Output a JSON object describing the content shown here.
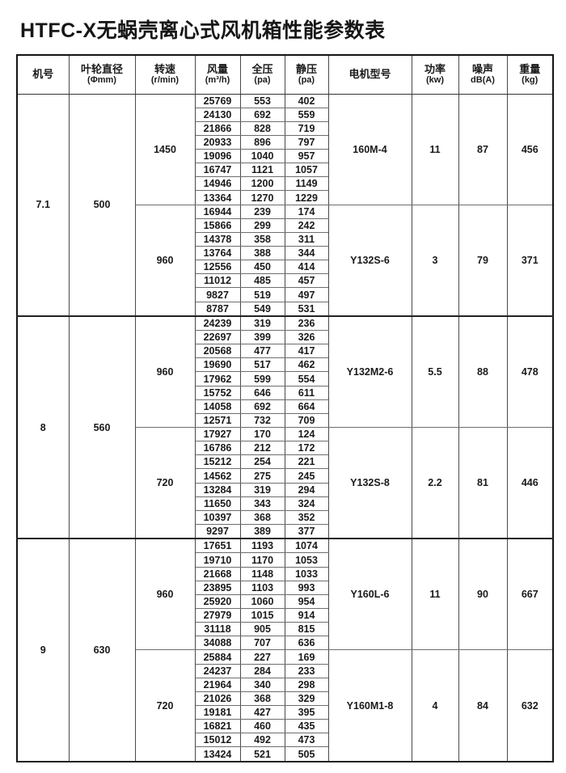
{
  "title": "HTFC-X无蜗壳离心式风机箱性能参数表",
  "table": {
    "headers": [
      {
        "label": "机号",
        "unit": ""
      },
      {
        "label": "叶轮直径",
        "unit": "(Φmm)"
      },
      {
        "label": "转速",
        "unit": "(r/min)"
      },
      {
        "label": "风量",
        "unit": "(m³/h)"
      },
      {
        "label": "全压",
        "unit": "(pa)"
      },
      {
        "label": "静压",
        "unit": "(pa)"
      },
      {
        "label": "电机型号",
        "unit": ""
      },
      {
        "label": "功率",
        "unit": "(kw)"
      },
      {
        "label": "噪声",
        "unit": "dB(A)"
      },
      {
        "label": "重量",
        "unit": "(kg)"
      }
    ],
    "groups": [
      {
        "machine_no": "7.1",
        "impeller_diameter": "500",
        "blocks": [
          {
            "speed": "1450",
            "motor_model": "160M-4",
            "power": "11",
            "noise": "87",
            "weight": "456",
            "rows": [
              [
                "25769",
                "553",
                "402"
              ],
              [
                "24130",
                "692",
                "559"
              ],
              [
                "21866",
                "828",
                "719"
              ],
              [
                "20933",
                "896",
                "797"
              ],
              [
                "19096",
                "1040",
                "957"
              ],
              [
                "16747",
                "1121",
                "1057"
              ],
              [
                "14946",
                "1200",
                "1149"
              ],
              [
                "13364",
                "1270",
                "1229"
              ]
            ]
          },
          {
            "speed": "960",
            "motor_model": "Y132S-6",
            "power": "3",
            "noise": "79",
            "weight": "371",
            "rows": [
              [
                "16944",
                "239",
                "174"
              ],
              [
                "15866",
                "299",
                "242"
              ],
              [
                "14378",
                "358",
                "311"
              ],
              [
                "13764",
                "388",
                "344"
              ],
              [
                "12556",
                "450",
                "414"
              ],
              [
                "11012",
                "485",
                "457"
              ],
              [
                "9827",
                "519",
                "497"
              ],
              [
                "8787",
                "549",
                "531"
              ]
            ]
          }
        ]
      },
      {
        "machine_no": "8",
        "impeller_diameter": "560",
        "blocks": [
          {
            "speed": "960",
            "motor_model": "Y132M2-6",
            "power": "5.5",
            "noise": "88",
            "weight": "478",
            "rows": [
              [
                "24239",
                "319",
                "236"
              ],
              [
                "22697",
                "399",
                "326"
              ],
              [
                "20568",
                "477",
                "417"
              ],
              [
                "19690",
                "517",
                "462"
              ],
              [
                "17962",
                "599",
                "554"
              ],
              [
                "15752",
                "646",
                "611"
              ],
              [
                "14058",
                "692",
                "664"
              ],
              [
                "12571",
                "732",
                "709"
              ]
            ]
          },
          {
            "speed": "720",
            "motor_model": "Y132S-8",
            "power": "2.2",
            "noise": "81",
            "weight": "446",
            "rows": [
              [
                "17927",
                "170",
                "124"
              ],
              [
                "16786",
                "212",
                "172"
              ],
              [
                "15212",
                "254",
                "221"
              ],
              [
                "14562",
                "275",
                "245"
              ],
              [
                "13284",
                "319",
                "294"
              ],
              [
                "11650",
                "343",
                "324"
              ],
              [
                "10397",
                "368",
                "352"
              ],
              [
                "9297",
                "389",
                "377"
              ]
            ]
          }
        ]
      },
      {
        "machine_no": "9",
        "impeller_diameter": "630",
        "blocks": [
          {
            "speed": "960",
            "motor_model": "Y160L-6",
            "power": "11",
            "noise": "90",
            "weight": "667",
            "rows": [
              [
                "17651",
                "1193",
                "1074"
              ],
              [
                "19710",
                "1170",
                "1053"
              ],
              [
                "21668",
                "1148",
                "1033"
              ],
              [
                "23895",
                "1103",
                "993"
              ],
              [
                "25920",
                "1060",
                "954"
              ],
              [
                "27979",
                "1015",
                "914"
              ],
              [
                "31118",
                "905",
                "815"
              ],
              [
                "34088",
                "707",
                "636"
              ]
            ]
          },
          {
            "speed": "720",
            "motor_model": "Y160M1-8",
            "power": "4",
            "noise": "84",
            "weight": "632",
            "rows": [
              [
                "25884",
                "227",
                "169"
              ],
              [
                "24237",
                "284",
                "233"
              ],
              [
                "21964",
                "340",
                "298"
              ],
              [
                "21026",
                "368",
                "329"
              ],
              [
                "19181",
                "427",
                "395"
              ],
              [
                "16821",
                "460",
                "435"
              ],
              [
                "15012",
                "492",
                "473"
              ],
              [
                "13424",
                "521",
                "505"
              ]
            ]
          }
        ]
      }
    ]
  }
}
